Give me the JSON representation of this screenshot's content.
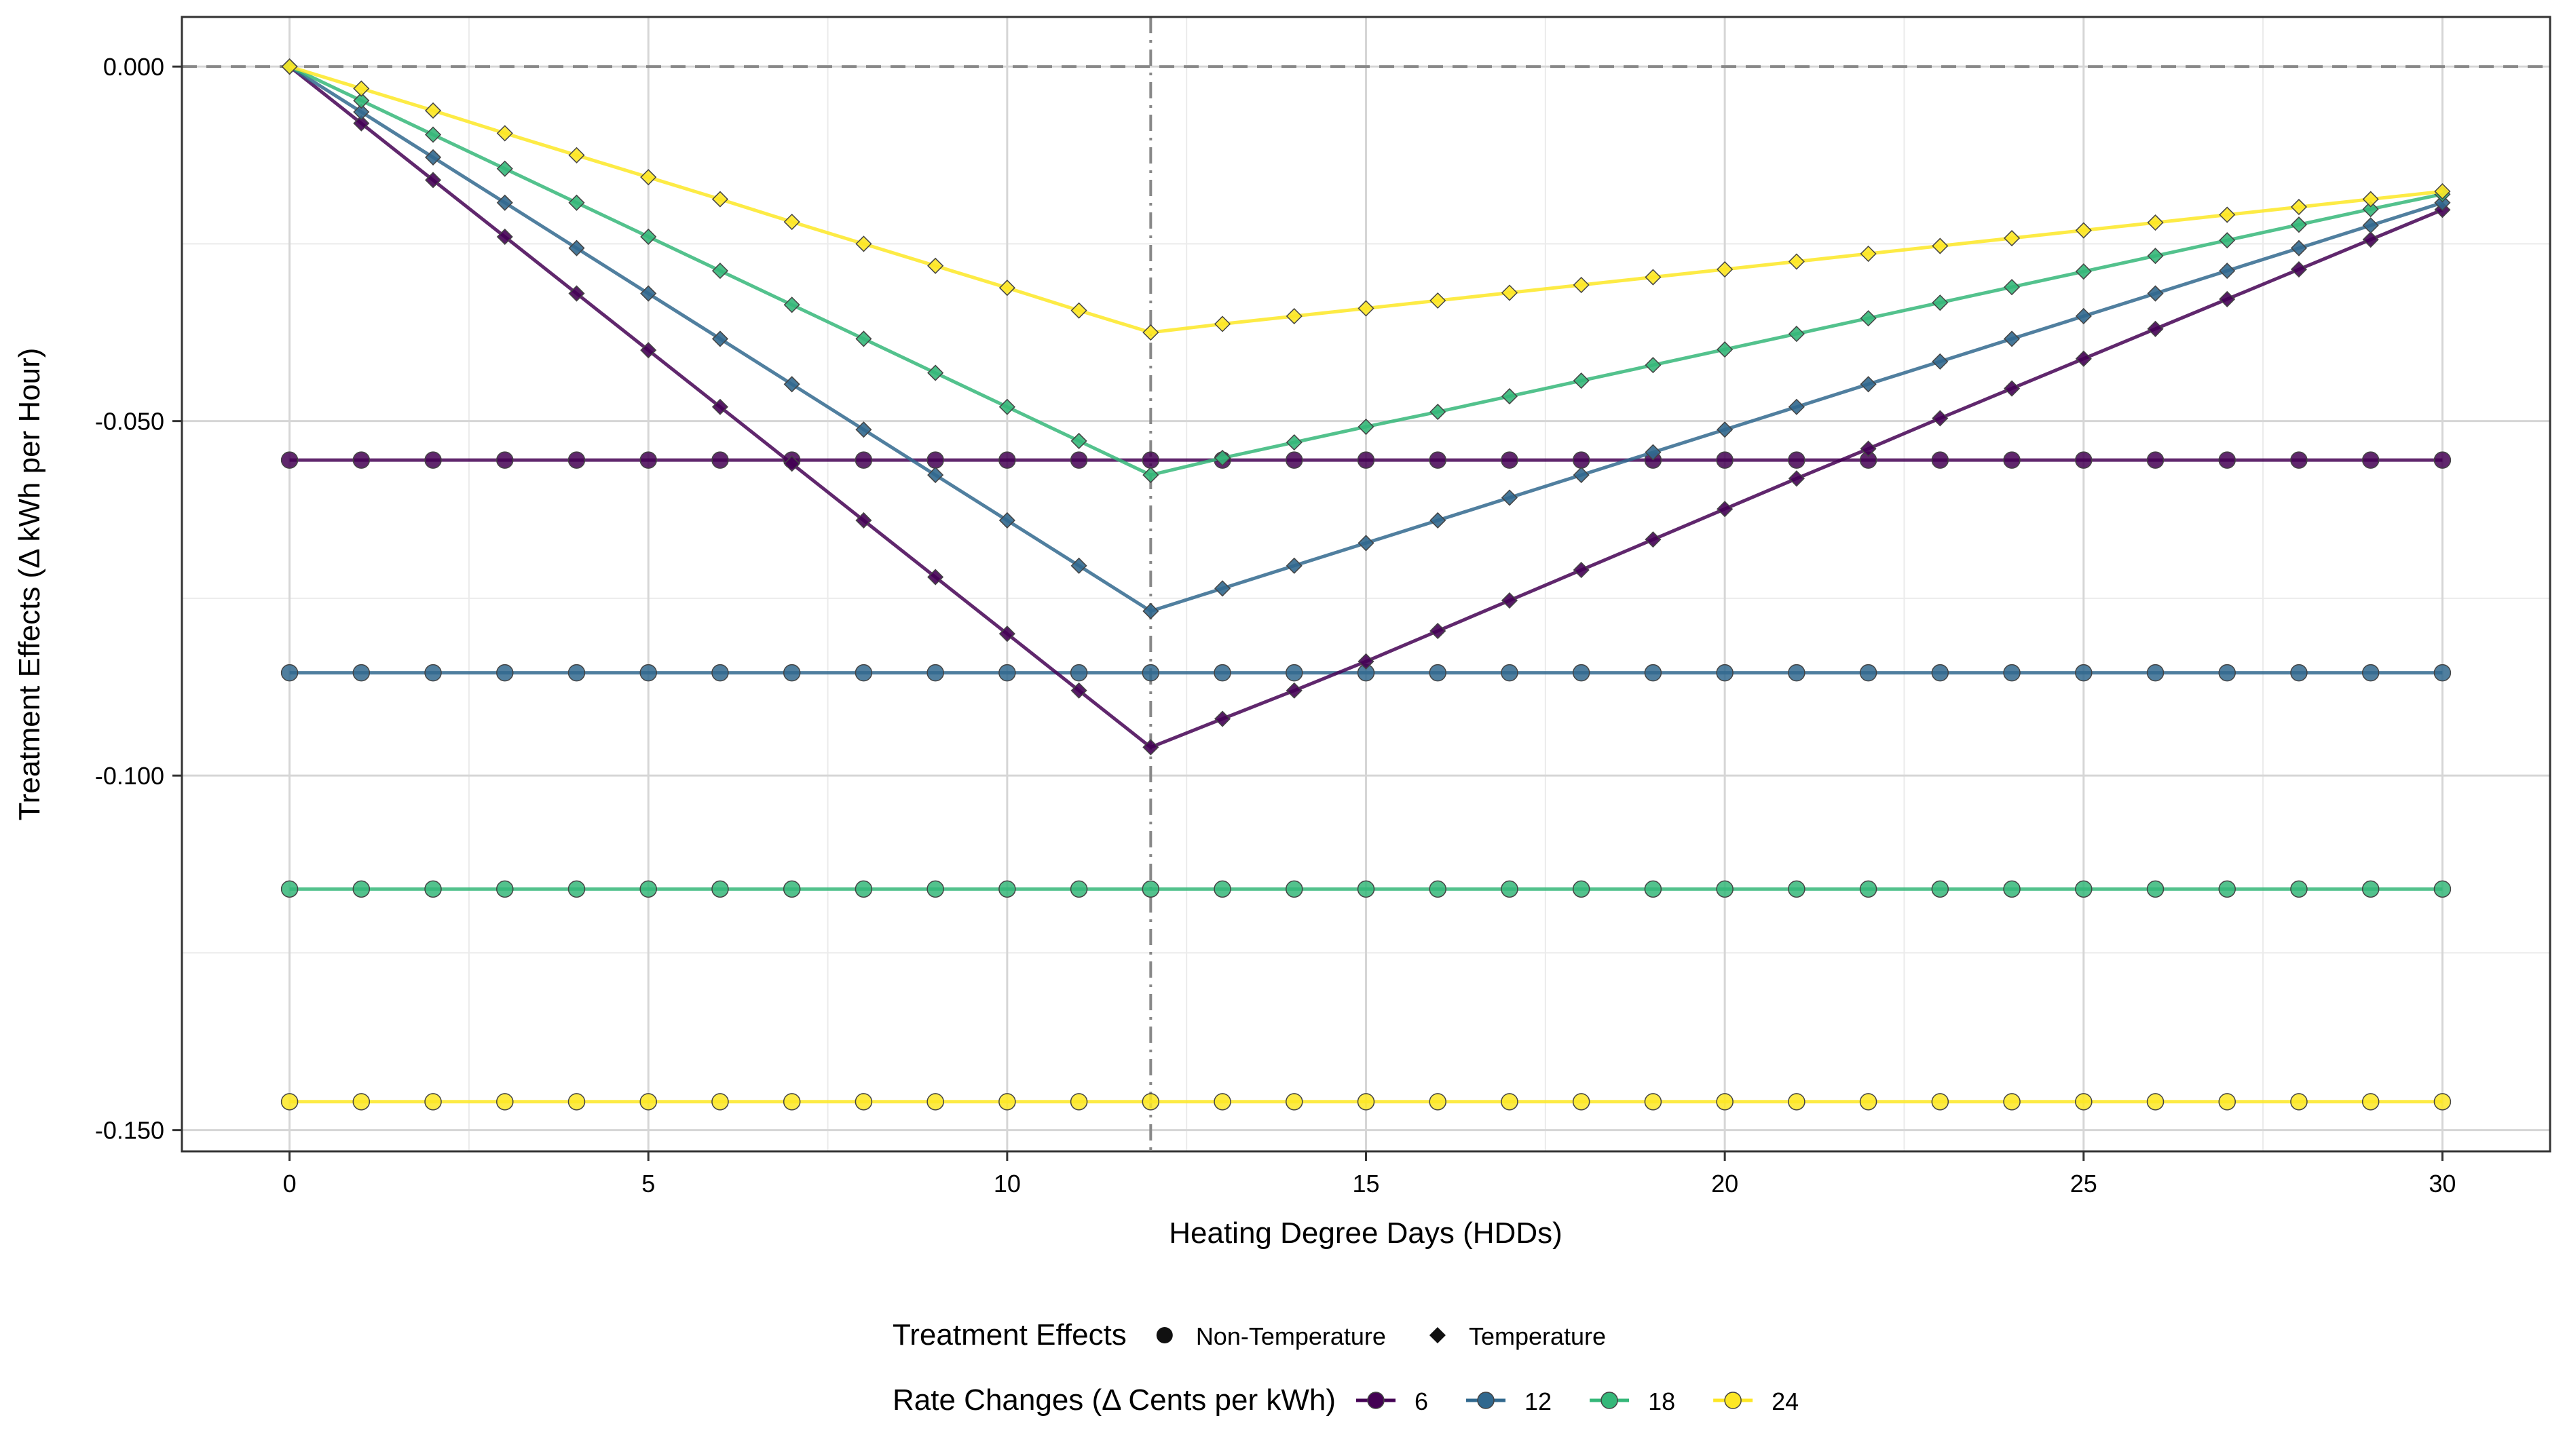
{
  "chart_data": {
    "type": "line",
    "title": "",
    "xlabel": "Heating Degree Days  (HDDs)",
    "ylabel": "Treatment Effects  (Δ kWh per Hour)",
    "xlim": [
      -1.5,
      31.5
    ],
    "ylim": [
      -0.153,
      0.007
    ],
    "x_ticks": [
      0,
      5,
      10,
      15,
      20,
      25,
      30
    ],
    "x_tick_labels": [
      "0",
      "5",
      "10",
      "15",
      "20",
      "25",
      "30"
    ],
    "y_ticks": [
      0.0,
      -0.05,
      -0.1,
      -0.15
    ],
    "y_tick_labels": [
      "0.000",
      "-0.050",
      "-0.100",
      "-0.150"
    ],
    "grid": true,
    "reference_lines": {
      "horizontal_y": 0.0,
      "vertical_x": 12
    },
    "legend": {
      "placement": "bottom",
      "shape_title": "Treatment Effects",
      "shape_entries": [
        {
          "label": "Non-Temperature",
          "marker": "circle"
        },
        {
          "label": "Temperature",
          "marker": "diamond"
        }
      ],
      "color_title": "Rate Changes  (Δ Cents per kWh)",
      "color_entries": [
        {
          "label": "6",
          "color": "#440154"
        },
        {
          "label": "12",
          "color": "#31688e"
        },
        {
          "label": "18",
          "color": "#35b779"
        },
        {
          "label": "24",
          "color": "#fde725"
        }
      ]
    },
    "x": [
      0,
      1,
      2,
      3,
      4,
      5,
      6,
      7,
      8,
      9,
      10,
      11,
      12,
      13,
      14,
      15,
      16,
      17,
      18,
      19,
      20,
      21,
      22,
      23,
      24,
      25,
      26,
      27,
      28,
      29,
      30
    ],
    "series": [
      {
        "rate": "6",
        "effect": "Non-Temperature",
        "marker": "circle",
        "color": "#440154",
        "values": [
          -0.0555,
          -0.0555,
          -0.0555,
          -0.0555,
          -0.0555,
          -0.0555,
          -0.0555,
          -0.0555,
          -0.0555,
          -0.0555,
          -0.0555,
          -0.0555,
          -0.0555,
          -0.0555,
          -0.0555,
          -0.0555,
          -0.0555,
          -0.0555,
          -0.0555,
          -0.0555,
          -0.0555,
          -0.0555,
          -0.0555,
          -0.0555,
          -0.0555,
          -0.0555,
          -0.0555,
          -0.0555,
          -0.0555,
          -0.0555,
          -0.0555
        ]
      },
      {
        "rate": "12",
        "effect": "Non-Temperature",
        "marker": "circle",
        "color": "#31688e",
        "values": [
          -0.0855,
          -0.0855,
          -0.0855,
          -0.0855,
          -0.0855,
          -0.0855,
          -0.0855,
          -0.0855,
          -0.0855,
          -0.0855,
          -0.0855,
          -0.0855,
          -0.0855,
          -0.0855,
          -0.0855,
          -0.0855,
          -0.0855,
          -0.0855,
          -0.0855,
          -0.0855,
          -0.0855,
          -0.0855,
          -0.0855,
          -0.0855,
          -0.0855,
          -0.0855,
          -0.0855,
          -0.0855,
          -0.0855,
          -0.0855,
          -0.0855
        ]
      },
      {
        "rate": "18",
        "effect": "Non-Temperature",
        "marker": "circle",
        "color": "#35b779",
        "values": [
          -0.116,
          -0.116,
          -0.116,
          -0.116,
          -0.116,
          -0.116,
          -0.116,
          -0.116,
          -0.116,
          -0.116,
          -0.116,
          -0.116,
          -0.116,
          -0.116,
          -0.116,
          -0.116,
          -0.116,
          -0.116,
          -0.116,
          -0.116,
          -0.116,
          -0.116,
          -0.116,
          -0.116,
          -0.116,
          -0.116,
          -0.116,
          -0.116,
          -0.116,
          -0.116,
          -0.116
        ]
      },
      {
        "rate": "24",
        "effect": "Non-Temperature",
        "marker": "circle",
        "color": "#fde725",
        "values": [
          -0.146,
          -0.146,
          -0.146,
          -0.146,
          -0.146,
          -0.146,
          -0.146,
          -0.146,
          -0.146,
          -0.146,
          -0.146,
          -0.146,
          -0.146,
          -0.146,
          -0.146,
          -0.146,
          -0.146,
          -0.146,
          -0.146,
          -0.146,
          -0.146,
          -0.146,
          -0.146,
          -0.146,
          -0.146,
          -0.146,
          -0.146,
          -0.146,
          -0.146,
          -0.146,
          -0.146
        ]
      },
      {
        "rate": "6",
        "effect": "Temperature",
        "marker": "diamond",
        "color": "#440154",
        "values": [
          0.0,
          -0.008,
          -0.016,
          -0.024,
          -0.032,
          -0.04,
          -0.048,
          -0.056,
          -0.064,
          -0.072,
          -0.08,
          -0.088,
          -0.096,
          -0.092,
          -0.088,
          -0.0839,
          -0.0796,
          -0.0753,
          -0.071,
          -0.0667,
          -0.0624,
          -0.0581,
          -0.0539,
          -0.0496,
          -0.0454,
          -0.0412,
          -0.037,
          -0.0328,
          -0.0286,
          -0.0244,
          -0.0202
        ]
      },
      {
        "rate": "12",
        "effect": "Temperature",
        "marker": "diamond",
        "color": "#31688e",
        "values": [
          0.0,
          -0.0064,
          -0.0128,
          -0.0192,
          -0.0256,
          -0.032,
          -0.0384,
          -0.0448,
          -0.0512,
          -0.0576,
          -0.064,
          -0.0704,
          -0.0768,
          -0.0736,
          -0.0704,
          -0.0672,
          -0.064,
          -0.0608,
          -0.0576,
          -0.0544,
          -0.0512,
          -0.048,
          -0.0448,
          -0.0416,
          -0.0384,
          -0.0352,
          -0.032,
          -0.0288,
          -0.0256,
          -0.0224,
          -0.0192
        ]
      },
      {
        "rate": "18",
        "effect": "Temperature",
        "marker": "diamond",
        "color": "#35b779",
        "values": [
          0.0,
          -0.0048,
          -0.0096,
          -0.0144,
          -0.0192,
          -0.024,
          -0.0288,
          -0.0336,
          -0.0384,
          -0.0432,
          -0.048,
          -0.0528,
          -0.0576,
          -0.0552,
          -0.053,
          -0.0508,
          -0.0487,
          -0.0465,
          -0.0443,
          -0.0421,
          -0.0399,
          -0.0377,
          -0.0355,
          -0.0333,
          -0.0311,
          -0.0289,
          -0.0267,
          -0.0245,
          -0.0223,
          -0.0201,
          -0.018
        ]
      },
      {
        "rate": "24",
        "effect": "Temperature",
        "marker": "diamond",
        "color": "#fde725",
        "values": [
          0.0,
          -0.0031,
          -0.0062,
          -0.0094,
          -0.0125,
          -0.0156,
          -0.0187,
          -0.0219,
          -0.025,
          -0.0281,
          -0.0312,
          -0.0344,
          -0.0375,
          -0.0363,
          -0.0352,
          -0.0341,
          -0.033,
          -0.0319,
          -0.0308,
          -0.0297,
          -0.0286,
          -0.0275,
          -0.0264,
          -0.0253,
          -0.0242,
          -0.0231,
          -0.022,
          -0.0209,
          -0.0198,
          -0.0187,
          -0.0176
        ]
      }
    ]
  }
}
